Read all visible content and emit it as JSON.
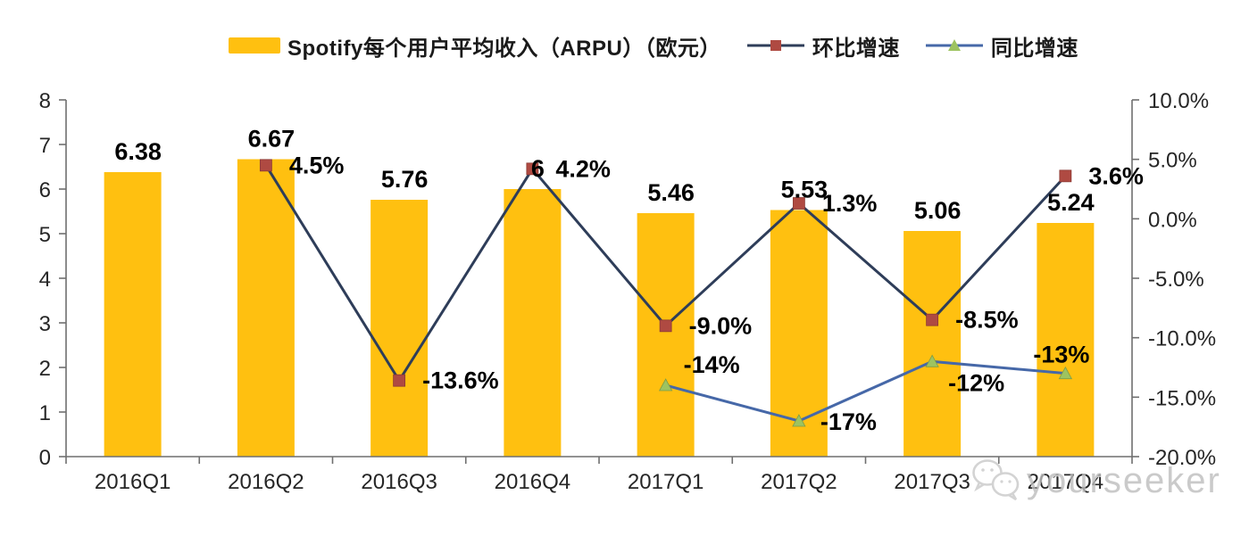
{
  "legend": {
    "arpu": "Spotify每个用户平均收入（ARPU）（欧元）",
    "qoq": "环比增速",
    "yoy": "同比增速"
  },
  "watermark": {
    "text": "yourseeker",
    "icon": "wechat-icon"
  },
  "colors": {
    "bar": "#FFC010",
    "qoq_line": "#2E3D59",
    "qoq_marker": "#AF4A42",
    "yoy_line": "#4668A8",
    "yoy_marker": "#9DC360",
    "axis": "#6F6F6F",
    "text": "#262626"
  },
  "chart_data": {
    "type": "combo (bar + line)",
    "title": "",
    "categories": [
      "2016Q1",
      "2016Q2",
      "2016Q3",
      "2016Q4",
      "2017Q1",
      "2017Q2",
      "2017Q3",
      "2017Q4"
    ],
    "series": [
      {
        "name": "Spotify每个用户平均收入（ARPU）（欧元）",
        "type": "bar",
        "axis": "left",
        "color": "#FFC010",
        "values": [
          6.38,
          6.67,
          5.76,
          6,
          5.46,
          5.53,
          5.06,
          5.24
        ],
        "labels": [
          "6.38",
          "6.67",
          "5.76",
          "6",
          "5.46",
          "5.53",
          "5.06",
          "5.24"
        ]
      },
      {
        "name": "环比增速",
        "type": "line",
        "axis": "right",
        "line_color": "#2E3D59",
        "marker": "square",
        "marker_color": "#AF4A42",
        "values": [
          null,
          4.5,
          -13.6,
          4.2,
          -9.0,
          1.3,
          -8.5,
          3.6
        ],
        "labels": [
          null,
          "4.5%",
          "-13.6%",
          "4.2%",
          "-9.0%",
          "1.3%",
          "-8.5%",
          "3.6%"
        ]
      },
      {
        "name": "同比增速",
        "type": "line",
        "axis": "right",
        "line_color": "#4668A8",
        "marker": "triangle",
        "marker_color": "#9DC360",
        "values": [
          null,
          null,
          null,
          null,
          -14,
          -17,
          -12,
          -13
        ],
        "labels": [
          null,
          null,
          null,
          null,
          "-14%",
          "-17%",
          "-12%",
          "-13%"
        ]
      }
    ],
    "left_axis": {
      "min": 0,
      "max": 8,
      "step": 1,
      "tick_labels": [
        "0",
        "1",
        "2",
        "3",
        "4",
        "5",
        "6",
        "7",
        "8"
      ]
    },
    "right_axis": {
      "min": -20,
      "max": 10,
      "step": 5,
      "tick_labels": [
        "-20.0%",
        "-15.0%",
        "-10.0%",
        "-5.0%",
        "0.0%",
        "5.0%",
        "10.0%"
      ]
    },
    "grid": false,
    "legend_position": "top"
  }
}
